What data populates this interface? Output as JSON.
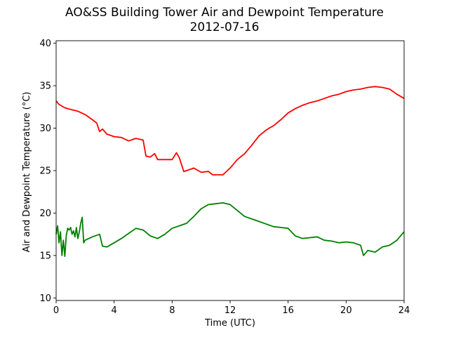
{
  "chart_data": {
    "type": "line",
    "title": "AO&SS Building Tower Air and Dewpoint Temperature",
    "subtitle": "2012-07-16",
    "xlabel": "Time (UTC)",
    "ylabel": "Air and Dewpoint Temperature (°C)",
    "xlim": [
      0,
      24
    ],
    "ylim": [
      9.7,
      40.3
    ],
    "xticks": [
      0,
      4,
      8,
      12,
      16,
      20,
      24
    ],
    "yticks": [
      10,
      15,
      20,
      25,
      30,
      35,
      40
    ],
    "grid": false,
    "legend": "none",
    "series": [
      {
        "color": "#ff0000",
        "x": [
          0,
          0.2,
          0.4,
          0.6,
          0.8,
          1.0,
          1.5,
          2.0,
          2.5,
          2.8,
          3.0,
          3.2,
          3.5,
          4.0,
          4.5,
          5.0,
          5.5,
          6.0,
          6.2,
          6.5,
          6.8,
          7.0,
          7.5,
          8.0,
          8.3,
          8.5,
          8.8,
          9.0,
          9.5,
          10.0,
          10.5,
          10.8,
          11.0,
          11.5,
          12.0,
          12.5,
          13.0,
          13.5,
          14.0,
          14.5,
          15.0,
          15.5,
          16.0,
          16.5,
          17.0,
          17.5,
          18.0,
          18.5,
          19.0,
          19.5,
          20.0,
          20.5,
          21.0,
          21.5,
          22.0,
          22.5,
          23.0,
          23.5,
          24.0
        ],
        "values": [
          33.2,
          32.8,
          32.6,
          32.4,
          32.3,
          32.2,
          32.0,
          31.6,
          31.0,
          30.6,
          29.6,
          29.9,
          29.3,
          29.0,
          28.9,
          28.5,
          28.8,
          28.6,
          26.7,
          26.6,
          27.0,
          26.3,
          26.3,
          26.3,
          27.1,
          26.5,
          24.9,
          25.0,
          25.3,
          24.8,
          24.9,
          24.5,
          24.5,
          24.5,
          25.3,
          26.3,
          27.0,
          28.0,
          29.1,
          29.8,
          30.3,
          31.0,
          31.8,
          32.3,
          32.7,
          33.0,
          33.2,
          33.5,
          33.8,
          34.0,
          34.3,
          34.5,
          34.6,
          34.8,
          34.9,
          34.8,
          34.6,
          34.0,
          33.5
        ]
      },
      {
        "color": "#008000",
        "x": [
          0,
          0.1,
          0.2,
          0.3,
          0.4,
          0.5,
          0.6,
          0.7,
          0.8,
          0.9,
          1.0,
          1.1,
          1.2,
          1.3,
          1.4,
          1.5,
          1.6,
          1.7,
          1.8,
          1.9,
          2.0,
          2.5,
          3.0,
          3.2,
          3.5,
          4.0,
          4.5,
          5.0,
          5.5,
          6.0,
          6.5,
          7.0,
          7.5,
          8.0,
          8.5,
          9.0,
          9.5,
          10.0,
          10.5,
          11.0,
          11.5,
          12.0,
          12.5,
          13.0,
          13.5,
          14.0,
          14.5,
          15.0,
          15.5,
          16.0,
          16.5,
          17.0,
          17.5,
          18.0,
          18.5,
          19.0,
          19.5,
          20.0,
          20.5,
          21.0,
          21.2,
          21.5,
          22.0,
          22.5,
          23.0,
          23.5,
          24.0
        ],
        "values": [
          17.5,
          18.5,
          16.5,
          17.8,
          15.0,
          16.8,
          14.9,
          17.4,
          18.2,
          18.0,
          18.3,
          17.5,
          17.9,
          17.2,
          18.3,
          17.0,
          17.8,
          18.8,
          19.5,
          16.5,
          16.8,
          17.2,
          17.5,
          16.1,
          16.0,
          16.5,
          17.0,
          17.6,
          18.2,
          18.0,
          17.3,
          17.0,
          17.5,
          18.2,
          18.5,
          18.8,
          19.6,
          20.5,
          21.0,
          21.1,
          21.2,
          21.0,
          20.3,
          19.6,
          19.3,
          19.0,
          18.7,
          18.4,
          18.3,
          18.2,
          17.3,
          17.0,
          17.1,
          17.2,
          16.8,
          16.7,
          16.5,
          16.6,
          16.5,
          16.2,
          15.0,
          15.6,
          15.4,
          16.0,
          16.2,
          16.8,
          17.8
        ]
      }
    ]
  }
}
